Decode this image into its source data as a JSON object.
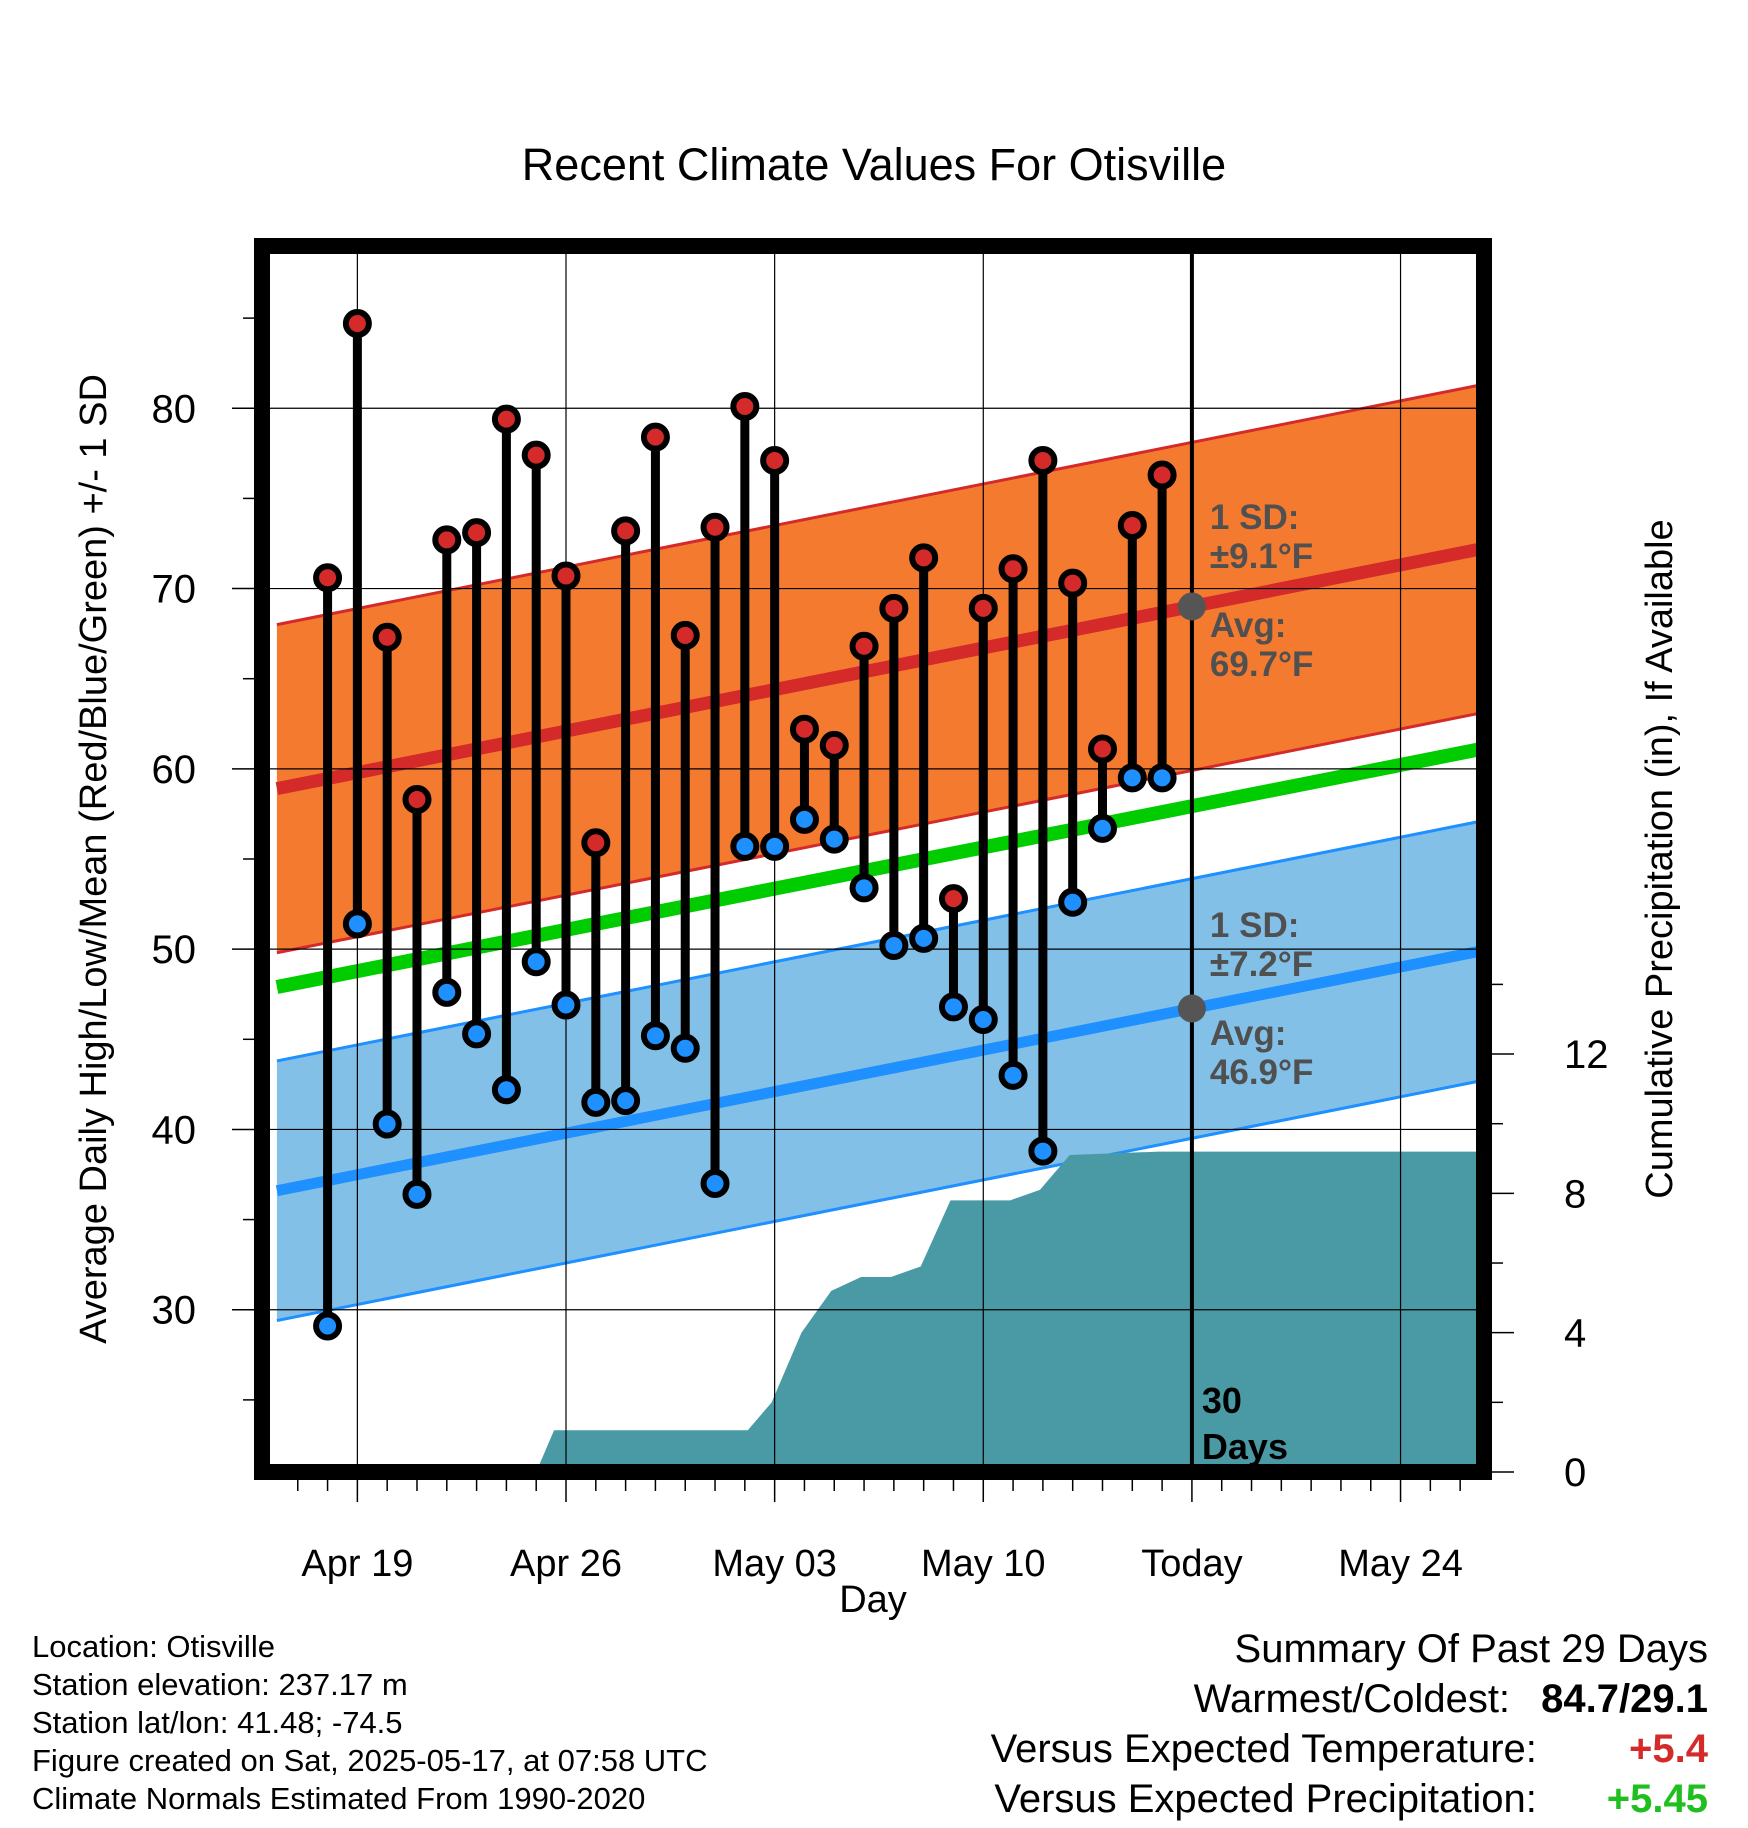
{
  "chart_data": {
    "type": "line",
    "title": "Recent Climate Values For Otisville",
    "xlabel": "Day",
    "ylabel": "Average Daily High/Low/Mean (Red/Blue/Green) +/- 1 SD",
    "y2label": "Cumulative Precipitation (in), If Available",
    "x_ticks": [
      {
        "day": 0,
        "label": "Apr 19"
      },
      {
        "day": 7,
        "label": "Apr 26"
      },
      {
        "day": 14,
        "label": "May 03"
      },
      {
        "day": 21,
        "label": "May 10"
      },
      {
        "day": 28,
        "label": "Today"
      },
      {
        "day": 35,
        "label": "May 24"
      }
    ],
    "xlim": [
      -3.2,
      37.8
    ],
    "ylim": [
      21,
      89
    ],
    "y_ticks": [
      30,
      40,
      50,
      60,
      70,
      80
    ],
    "y2lim": [
      0,
      35.2
    ],
    "y2_ticks": [
      0,
      4,
      8,
      12
    ],
    "grid": true,
    "colors": {
      "high": "#d42a2a",
      "high_band": "#f47a30",
      "low": "#1e90ff",
      "low_band": "#82c0e8",
      "mean": "#00cc00",
      "precip": "#4a9aa5",
      "today_marker": "#555555"
    },
    "normals": {
      "high_avg": [
        {
          "day": -2.7,
          "value": 58.9
        },
        {
          "day": 37.7,
          "value": 72.2
        }
      ],
      "high_sd": 9.1,
      "low_avg": [
        {
          "day": -2.7,
          "value": 36.6
        },
        {
          "day": 37.7,
          "value": 49.9
        }
      ],
      "low_sd": 7.2,
      "mean": [
        {
          "day": -2.7,
          "value": 47.9
        },
        {
          "day": 37.7,
          "value": 61.1
        }
      ]
    },
    "series": [
      {
        "name": "High",
        "values": [
          70.6,
          84.7,
          67.3,
          58.3,
          72.7,
          73.1,
          79.4,
          77.4,
          70.7,
          55.9,
          73.2,
          78.4,
          67.4,
          73.4,
          80.1,
          77.1,
          62.2,
          61.3,
          66.8,
          68.9,
          71.7,
          52.8,
          68.9,
          71.1,
          77.1,
          70.3,
          61.1,
          73.5,
          76.3
        ]
      },
      {
        "name": "Low",
        "values": [
          29.1,
          51.4,
          40.3,
          36.4,
          47.6,
          45.3,
          42.2,
          49.3,
          46.9,
          41.5,
          41.6,
          45.2,
          44.5,
          37.0,
          55.7,
          55.7,
          57.2,
          56.1,
          53.4,
          50.2,
          50.6,
          46.8,
          46.1,
          43.0,
          38.8,
          52.6,
          56.7,
          59.5,
          59.5
        ]
      }
    ],
    "days": [
      -1,
      0,
      1,
      2,
      3,
      4,
      5,
      6,
      7,
      8,
      9,
      10,
      11,
      12,
      13,
      14,
      15,
      16,
      17,
      18,
      19,
      20,
      21,
      22,
      23,
      24,
      25,
      26,
      27
    ],
    "precip_cumulative": [
      {
        "day": 6,
        "value": 0
      },
      {
        "day": 6.6,
        "value": 1.2
      },
      {
        "day": 9.5,
        "value": 1.2
      },
      {
        "day": 13.1,
        "value": 1.2
      },
      {
        "day": 13.9,
        "value": 2.0
      },
      {
        "day": 14.9,
        "value": 4.0
      },
      {
        "day": 15.9,
        "value": 5.2
      },
      {
        "day": 16.9,
        "value": 5.6
      },
      {
        "day": 17.9,
        "value": 5.6
      },
      {
        "day": 18.9,
        "value": 5.9
      },
      {
        "day": 19.9,
        "value": 7.8
      },
      {
        "day": 21.9,
        "value": 7.8
      },
      {
        "day": 22.9,
        "value": 8.1
      },
      {
        "day": 23.9,
        "value": 9.1
      },
      {
        "day": 26.9,
        "value": 9.2
      },
      {
        "day": 37.8,
        "value": 9.2
      }
    ],
    "annotations": {
      "high_sd": "1 SD:",
      "high_sd_value": "±9.1°F",
      "high_avg": "Avg:",
      "high_avg_value": "69.7°F",
      "low_sd": "1 SD:",
      "low_sd_value": "±7.2°F",
      "low_avg": "Avg:",
      "low_avg_value": "46.9°F",
      "days_value": "30",
      "days_unit": "Days"
    }
  },
  "footer": {
    "location": "Location: Otisville",
    "elevation": "Station elevation: 237.17 m",
    "latlon": "Station lat/lon: 41.48; -74.5",
    "created": "Figure created on Sat, 2025-05-17, at 07:58 UTC",
    "normals": "Climate Normals Estimated From 1990-2020"
  },
  "summary": {
    "title": "Summary Of Past 29 Days",
    "warmest_coldest_label": "Warmest/Coldest:",
    "warmest_coldest_value": "84.7/29.1",
    "temp_label": "Versus Expected Temperature:",
    "temp_value": "+5.4",
    "temp_color": "#d42a2a",
    "precip_label": "Versus Expected Precipitation:",
    "precip_value": "+5.45",
    "precip_color": "#1fbf1f"
  }
}
